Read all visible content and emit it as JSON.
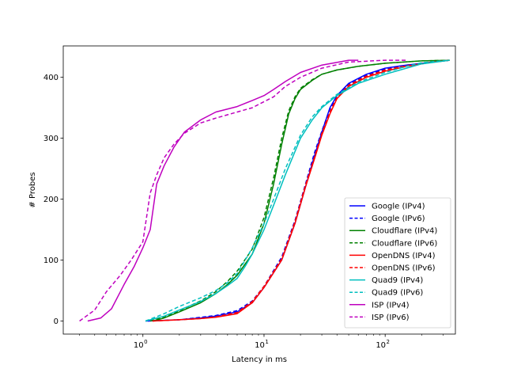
{
  "chart_data": {
    "type": "line",
    "title": "",
    "xlabel": "Latency in ms",
    "ylabel": "# Probes",
    "xscale": "log",
    "xlim": [
      0.22,
      380
    ],
    "ylim": [
      -21.5,
      451.5
    ],
    "xticks": [
      {
        "value": 1,
        "label": "10",
        "sup": "0"
      },
      {
        "value": 10,
        "label": "10",
        "sup": "1"
      },
      {
        "value": 100,
        "label": "10",
        "sup": "2"
      }
    ],
    "yticks": [
      0,
      100,
      200,
      300,
      400
    ],
    "grid": false,
    "legend_position": "lower-right",
    "series": [
      {
        "name": "Google (IPv4)",
        "color": "#0000ff",
        "dash": "solid",
        "x": [
          1.1,
          2.0,
          3.0,
          4.0,
          6.0,
          8.0,
          10.0,
          14.0,
          18.0,
          22.0,
          26.0,
          30.0,
          35.0,
          40.0,
          50.0,
          70.0,
          100.0,
          150.0,
          250.0,
          340.0
        ],
        "y": [
          0,
          2,
          5,
          8,
          15,
          30,
          55,
          100,
          160,
          220,
          270,
          310,
          350,
          370,
          390,
          405,
          415,
          420,
          425,
          428
        ]
      },
      {
        "name": "Google (IPv6)",
        "color": "#0000ff",
        "dash": "dashed",
        "x": [
          1.05,
          2.0,
          3.0,
          4.0,
          6.0,
          8.0,
          10.0,
          14.0,
          18.0,
          22.0,
          26.0,
          30.0,
          35.0,
          40.0,
          50.0,
          70.0,
          100.0,
          150.0,
          250.0,
          340.0
        ],
        "y": [
          0,
          2,
          6,
          9,
          17,
          33,
          57,
          105,
          165,
          225,
          275,
          312,
          348,
          368,
          388,
          403,
          413,
          420,
          425,
          428
        ]
      },
      {
        "name": "Cloudflare (IPv4)",
        "color": "#008000",
        "dash": "solid",
        "x": [
          1.2,
          1.5,
          2.0,
          3.0,
          4.0,
          5.0,
          6.0,
          8.0,
          10.0,
          12.0,
          14.0,
          16.0,
          18.0,
          20.0,
          25.0,
          30.0,
          40.0,
          60.0,
          100.0,
          200.0,
          340.0
        ],
        "y": [
          0,
          5,
          15,
          30,
          45,
          60,
          75,
          110,
          160,
          225,
          290,
          340,
          365,
          380,
          395,
          405,
          412,
          418,
          423,
          427,
          428
        ]
      },
      {
        "name": "Cloudflare (IPv6)",
        "color": "#008000",
        "dash": "dashed",
        "x": [
          1.15,
          1.5,
          2.0,
          3.0,
          4.0,
          5.0,
          6.0,
          8.0,
          10.0,
          12.0,
          14.0,
          16.0,
          18.0,
          20.0,
          25.0,
          30.0,
          40.0,
          60.0,
          100.0,
          200.0,
          340.0
        ],
        "y": [
          0,
          6,
          17,
          33,
          48,
          65,
          82,
          118,
          170,
          235,
          300,
          345,
          368,
          382,
          396,
          405,
          412,
          418,
          423,
          427,
          428
        ]
      },
      {
        "name": "OpenDNS (IPv4)",
        "color": "#ff0000",
        "dash": "solid",
        "x": [
          1.2,
          2.0,
          3.0,
          4.0,
          6.0,
          8.0,
          10.0,
          14.0,
          18.0,
          22.0,
          26.0,
          30.0,
          35.0,
          40.0,
          50.0,
          70.0,
          100.0,
          150.0,
          250.0,
          340.0
        ],
        "y": [
          0,
          2,
          4,
          6,
          12,
          30,
          55,
          100,
          160,
          220,
          265,
          305,
          340,
          365,
          385,
          400,
          410,
          418,
          425,
          428
        ]
      },
      {
        "name": "OpenDNS (IPv6)",
        "color": "#ff0000",
        "dash": "dashed",
        "x": [
          1.2,
          2.0,
          3.0,
          4.0,
          6.0,
          8.0,
          10.0,
          14.0,
          18.0,
          22.0,
          26.0,
          30.0,
          35.0,
          40.0,
          50.0,
          70.0,
          100.0,
          150.0,
          250.0,
          340.0
        ],
        "y": [
          0,
          2,
          4,
          7,
          14,
          32,
          57,
          102,
          163,
          223,
          268,
          308,
          343,
          367,
          387,
          402,
          412,
          419,
          425,
          428
        ]
      },
      {
        "name": "Quad9 (IPv4)",
        "color": "#00bfbf",
        "dash": "solid",
        "x": [
          1.05,
          1.5,
          2.0,
          3.0,
          4.0,
          5.0,
          6.0,
          7.0,
          8.0,
          10.0,
          12.0,
          15.0,
          20.0,
          25.0,
          30.0,
          40.0,
          60.0,
          100.0,
          150.0,
          200.0,
          340.0
        ],
        "y": [
          0,
          8,
          18,
          32,
          45,
          58,
          70,
          90,
          110,
          150,
          190,
          240,
          300,
          330,
          350,
          370,
          390,
          405,
          415,
          422,
          428
        ]
      },
      {
        "name": "Quad9 (IPv6)",
        "color": "#00bfbf",
        "dash": "dashed",
        "x": [
          1.05,
          1.5,
          2.0,
          3.0,
          4.0,
          5.0,
          6.0,
          7.0,
          8.0,
          10.0,
          12.0,
          15.0,
          20.0,
          25.0,
          30.0,
          40.0,
          60.0,
          100.0,
          150.0,
          200.0,
          340.0
        ],
        "y": [
          0,
          12,
          24,
          38,
          50,
          63,
          78,
          100,
          120,
          160,
          200,
          250,
          305,
          335,
          352,
          372,
          392,
          408,
          418,
          424,
          428
        ]
      },
      {
        "name": "ISP (IPv4)",
        "color": "#bf00bf",
        "dash": "solid",
        "x": [
          0.35,
          0.45,
          0.55,
          0.7,
          0.85,
          1.0,
          1.15,
          1.3,
          1.5,
          1.8,
          2.2,
          3.0,
          4.0,
          6.0,
          8.0,
          10.0,
          12.0,
          15.0,
          20.0,
          30.0,
          50.0,
          60.0
        ],
        "y": [
          0,
          5,
          20,
          60,
          90,
          120,
          150,
          225,
          255,
          285,
          310,
          330,
          343,
          352,
          362,
          370,
          380,
          393,
          408,
          420,
          428,
          428
        ]
      },
      {
        "name": "ISP (IPv6)",
        "color": "#bf00bf",
        "dash": "dashed",
        "x": [
          0.3,
          0.4,
          0.5,
          0.65,
          0.8,
          1.0,
          1.15,
          1.3,
          1.5,
          1.8,
          2.2,
          3.0,
          4.0,
          6.0,
          8.0,
          10.0,
          12.0,
          15.0,
          20.0,
          30.0,
          50.0,
          100.0,
          150.0
        ],
        "y": [
          0,
          18,
          48,
          75,
          100,
          130,
          210,
          240,
          268,
          290,
          308,
          325,
          333,
          343,
          350,
          360,
          368,
          385,
          400,
          415,
          425,
          428,
          428
        ]
      }
    ]
  }
}
